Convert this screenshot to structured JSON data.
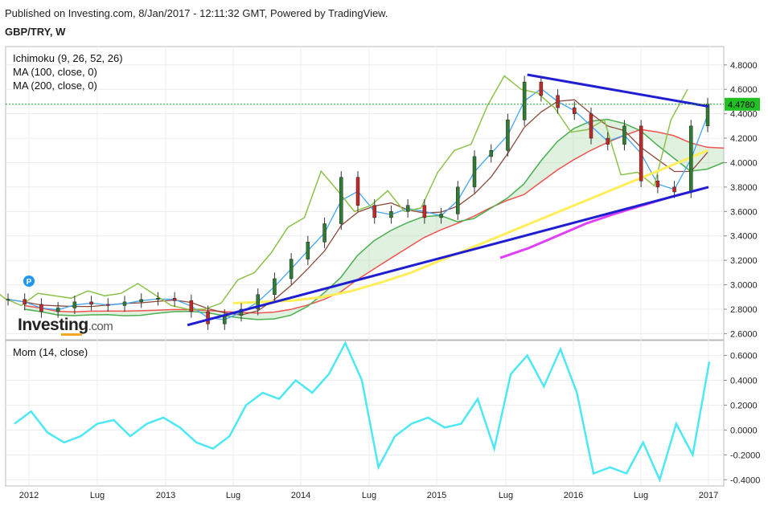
{
  "header": {
    "published": "Published on Investing.com, 8/Jan/2017 - 12:11:32 GMT, Powered by TradingView.",
    "symbol": "GBP/TRY, W"
  },
  "indicators": {
    "ichimoku": "Ichimoku (9, 26, 52, 26)",
    "ma100": "MA (100, close, 0)",
    "ma200": "MA (200, close, 0)",
    "momentum": "Mom (14, close)"
  },
  "logo": {
    "name": "Investing",
    "suffix": ".com"
  },
  "price_marker": {
    "label": "P",
    "color": "#2196f3"
  },
  "colors": {
    "candle_up": "#2e7d32",
    "candle_down": "#c62828",
    "tenkan": "#42a5f5",
    "kijun": "#8d4a3a",
    "chikou": "#8bc34a",
    "span_a": "#4caf50",
    "span_b": "#ef5350",
    "ma100": "#ffee58",
    "ma200": "#e040fb",
    "trendline": "#1f1fd1",
    "momentum": "#4ee8f5",
    "last_price_bg": "#22c022"
  },
  "chart_data": [
    {
      "type": "line",
      "subtype": "candlestick",
      "title": "GBP/TRY, W",
      "x_ticks": [
        "2012",
        "Lug",
        "2013",
        "Lug",
        "2014",
        "Lug",
        "2015",
        "Lug",
        "2016",
        "Lug",
        "2017"
      ],
      "y_ticks": [
        "4.8000",
        "4.6000",
        "4.4000",
        "4.2000",
        "4.0000",
        "3.8000",
        "3.6000",
        "3.4000",
        "3.2000",
        "3.0000",
        "2.8000",
        "2.6000"
      ],
      "ylim": [
        2.55,
        4.95
      ],
      "last_price": "4.4780",
      "grid": true,
      "series": [
        {
          "name": "Ichimoku (9, 26, 52, 26)",
          "close": [
            2.88,
            2.84,
            2.78,
            2.81,
            2.86,
            2.84,
            2.83,
            2.86,
            2.88,
            2.89,
            2.87,
            2.78,
            2.68,
            2.75,
            2.8,
            2.92,
            3.05,
            3.21,
            3.35,
            3.5,
            3.88,
            3.65,
            3.55,
            3.6,
            3.65,
            3.55,
            3.58,
            3.8,
            4.05,
            4.1,
            4.35,
            4.66,
            4.55,
            4.45,
            4.4,
            4.2,
            4.15,
            4.3,
            3.85,
            3.8,
            3.76,
            4.3,
            4.48
          ],
          "trendlines": [
            {
              "from": [
                "2013-03",
                2.67
              ],
              "to": [
                "2017-01",
                3.8
              ]
            },
            {
              "from": [
                "2015-09",
                4.72
              ],
              "to": [
                "2017-01",
                4.46
              ]
            }
          ]
        },
        {
          "name": "MA (100, close, 0)",
          "values": [
            2.85,
            2.86,
            2.87,
            2.9,
            2.95,
            3.02,
            3.1,
            3.2,
            3.3,
            3.4,
            3.5,
            3.6,
            3.7,
            3.8,
            3.9,
            4.0,
            4.1
          ]
        },
        {
          "name": "MA (200, close, 0)",
          "values": [
            3.22,
            3.3,
            3.4,
            3.5,
            3.58,
            3.65,
            3.72,
            3.78
          ]
        }
      ]
    },
    {
      "type": "line",
      "title": "Mom (14, close)",
      "x_ticks": [
        "2012",
        "Lug",
        "2013",
        "Lug",
        "2014",
        "Lug",
        "2015",
        "Lug",
        "2016",
        "Lug",
        "2017"
      ],
      "y_ticks": [
        "0.6000",
        "0.4000",
        "0.2000",
        "0.0000",
        "-0.2000",
        "-0.4000"
      ],
      "ylim": [
        -0.45,
        0.72
      ],
      "grid": true,
      "series": [
        {
          "name": "Mom (14, close)",
          "values": [
            0.05,
            0.15,
            -0.02,
            -0.1,
            -0.05,
            0.05,
            0.08,
            -0.05,
            0.05,
            0.1,
            0.02,
            -0.1,
            -0.15,
            -0.05,
            0.2,
            0.3,
            0.25,
            0.4,
            0.3,
            0.45,
            0.7,
            0.4,
            -0.3,
            -0.05,
            0.05,
            0.1,
            0.02,
            0.05,
            0.25,
            -0.15,
            0.45,
            0.6,
            0.35,
            0.65,
            0.3,
            -0.35,
            -0.3,
            -0.35,
            -0.1,
            -0.4,
            0.05,
            -0.2,
            0.55
          ]
        }
      ]
    }
  ]
}
